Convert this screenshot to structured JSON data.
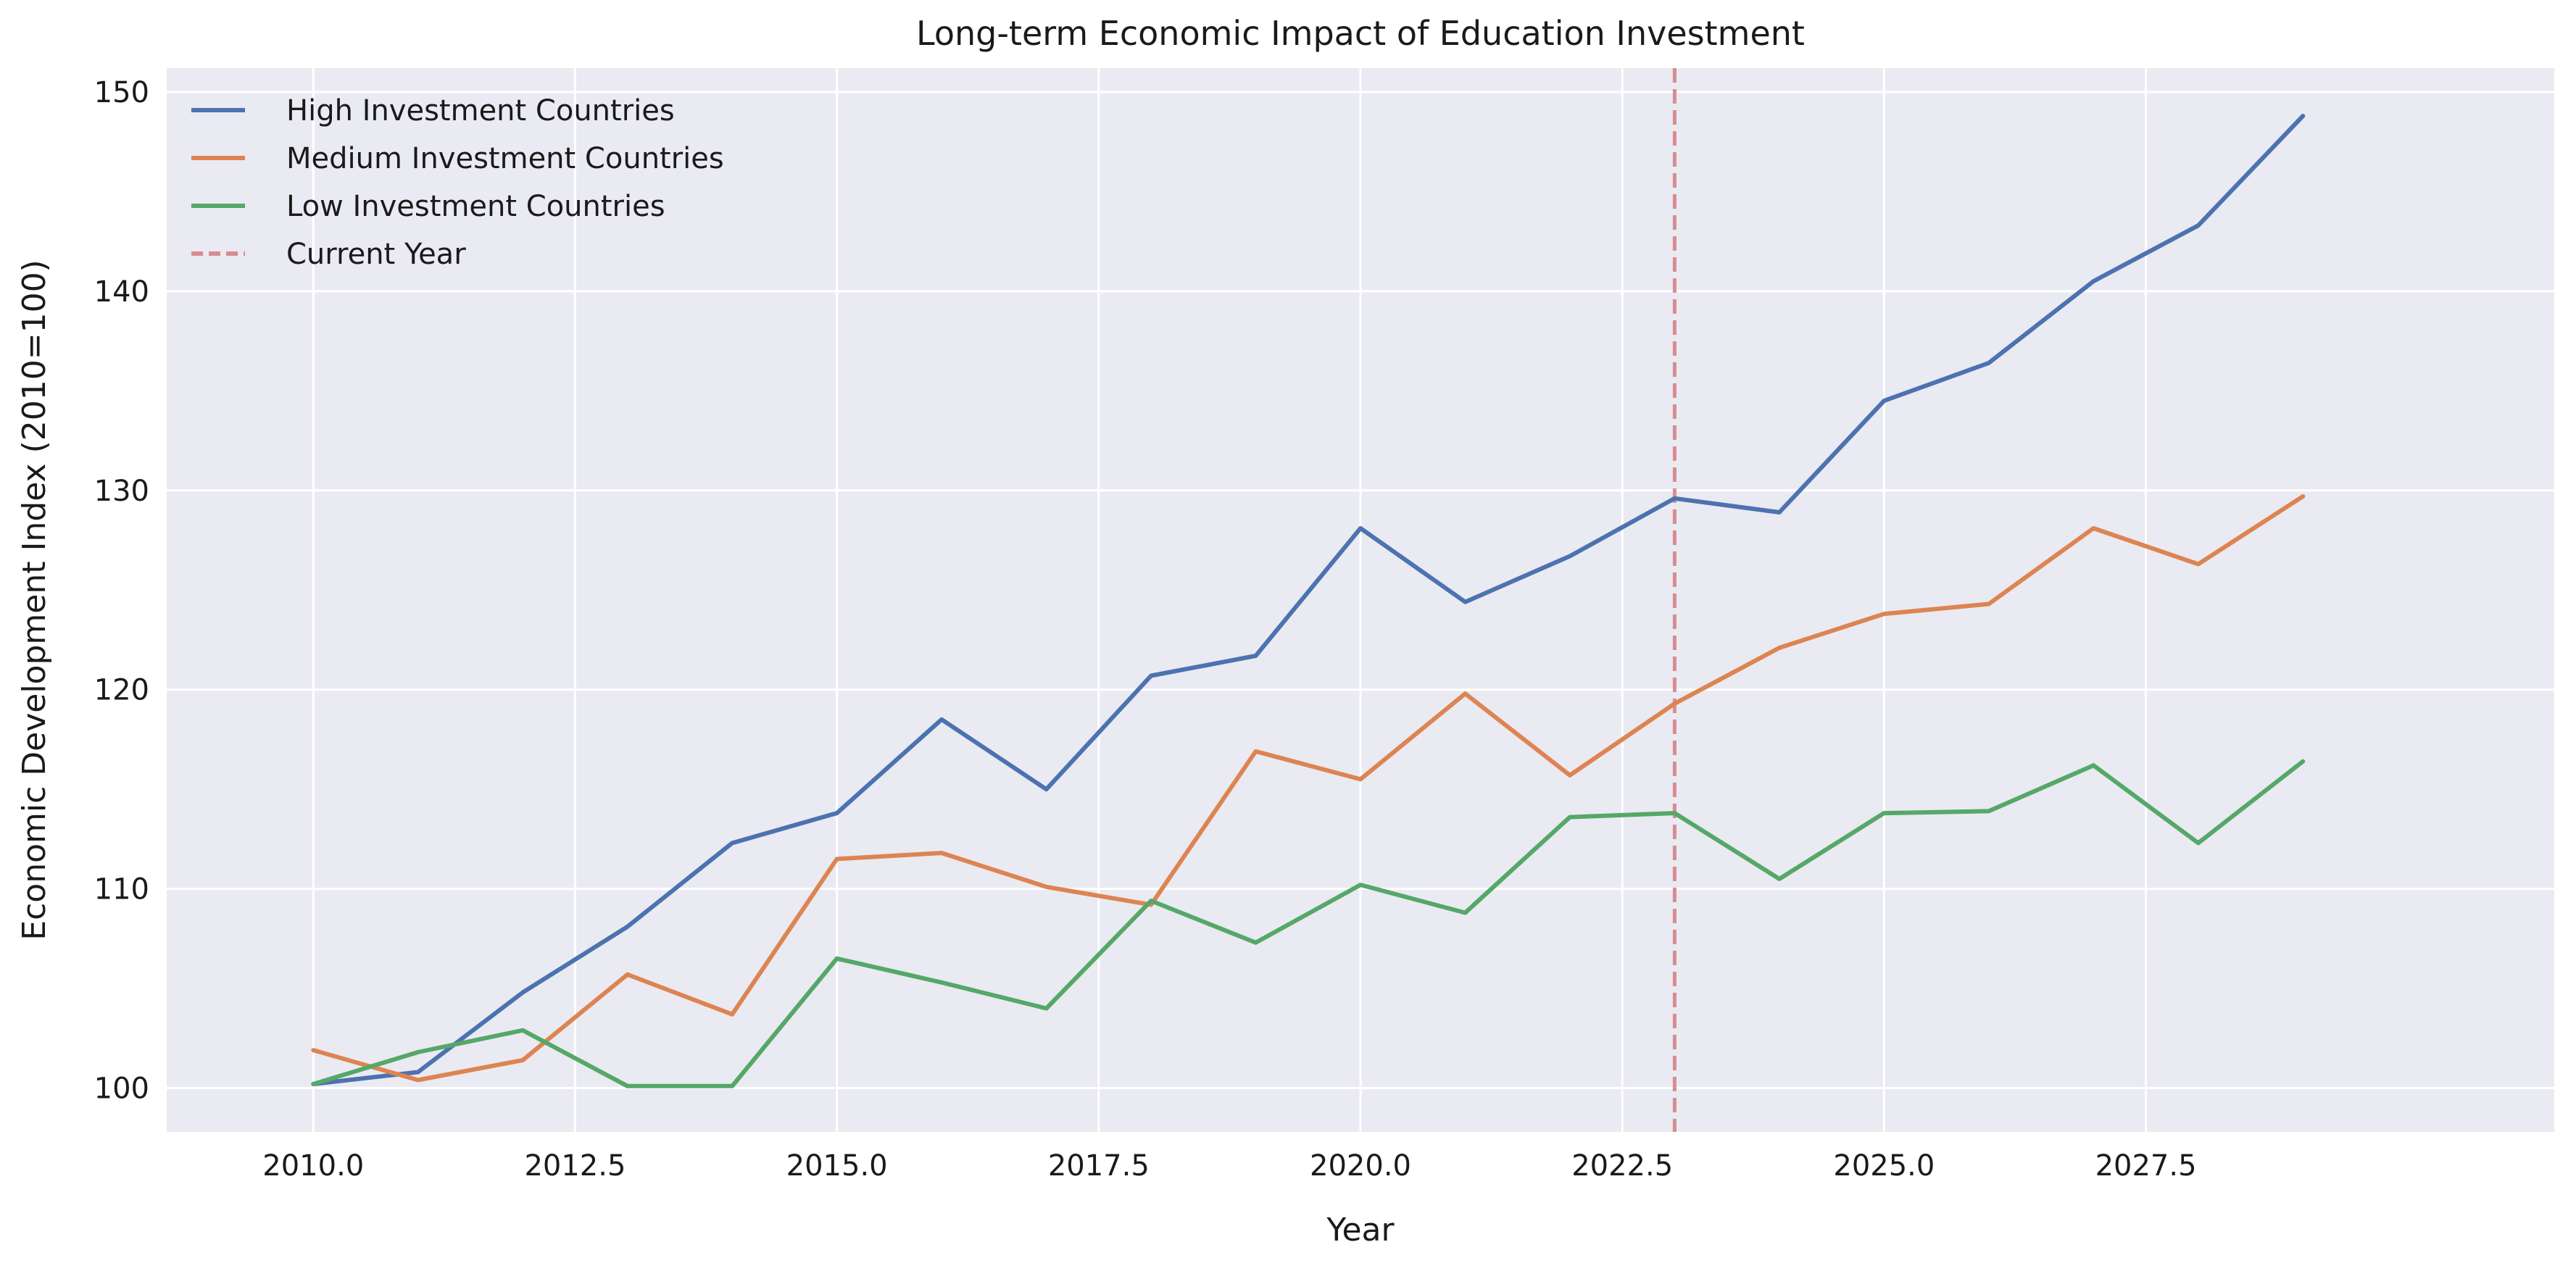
{
  "chart_data": {
    "type": "line",
    "title": "Long-term Economic Impact of Education Investment",
    "xlabel": "Year",
    "ylabel": "Economic Development Index (2010=100)",
    "xlim": [
      2008.6,
      2031.4
    ],
    "ylim": [
      97.8,
      151.2
    ],
    "xticks": [
      2010,
      2012.5,
      2015,
      2017.5,
      2020,
      2022.5,
      2025,
      2027.5
    ],
    "xtick_labels": [
      "2010.0",
      "2012.5",
      "2015.0",
      "2017.5",
      "2020.0",
      "2022.5",
      "2025.0",
      "2027.5"
    ],
    "yticks": [
      100,
      110,
      120,
      130,
      140,
      150
    ],
    "ytick_labels": [
      "100",
      "110",
      "120",
      "130",
      "140",
      "150"
    ],
    "grid": true,
    "legend_position": "top-left",
    "x": [
      2010,
      2011,
      2012,
      2013,
      2014,
      2015,
      2016,
      2017,
      2018,
      2019,
      2020,
      2021,
      2022,
      2023,
      2024,
      2025,
      2026,
      2027,
      2028,
      2029
    ],
    "series": [
      {
        "name": "High Investment Countries",
        "color": "#4c72b0",
        "values": [
          100.2,
          100.8,
          104.8,
          108.1,
          112.3,
          113.8,
          118.5,
          115.0,
          120.7,
          121.7,
          128.1,
          124.4,
          126.7,
          129.6,
          128.9,
          134.5,
          136.4,
          140.5,
          143.3,
          148.8
        ]
      },
      {
        "name": "Medium Investment Countries",
        "color": "#dd8452",
        "values": [
          101.9,
          100.4,
          101.4,
          105.7,
          103.7,
          111.5,
          111.8,
          110.1,
          109.2,
          116.9,
          115.5,
          119.8,
          115.7,
          119.3,
          122.1,
          123.8,
          124.3,
          128.1,
          126.3,
          129.7
        ]
      },
      {
        "name": "Low Investment Countries",
        "color": "#55a868",
        "values": [
          100.2,
          101.8,
          102.9,
          100.1,
          100.1,
          106.5,
          105.3,
          104.0,
          109.4,
          107.3,
          110.2,
          108.8,
          113.6,
          113.8,
          110.5,
          113.8,
          113.9,
          116.2,
          112.3,
          116.4
        ]
      }
    ],
    "vline": {
      "name": "Current Year",
      "x": 2023,
      "color": "#d98b94",
      "style": "dashed"
    }
  }
}
